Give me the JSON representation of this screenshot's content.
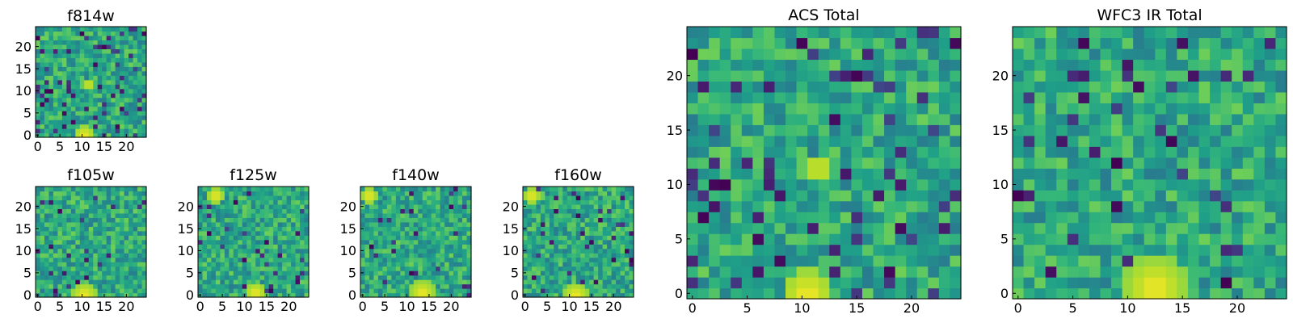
{
  "chart_data": [
    {
      "type": "heatmap",
      "title": "f814w",
      "xlim": [
        0,
        25
      ],
      "ylim": [
        0,
        25
      ],
      "xticks": [
        0,
        5,
        10,
        15,
        20
      ],
      "yticks": [
        0,
        5,
        10,
        15,
        20
      ],
      "grid_size": 25,
      "colormap": "viridis",
      "seed": 11,
      "bright_spots": [
        {
          "x": 11,
          "y": 0.5,
          "r": 2.5
        },
        {
          "x": 12,
          "y": 12,
          "r": 1.2
        }
      ],
      "dark_density": 0.09
    },
    {
      "type": "heatmap",
      "title": "f105w",
      "xlim": [
        0,
        25
      ],
      "ylim": [
        0,
        25
      ],
      "xticks": [
        0,
        5,
        10,
        15,
        20
      ],
      "yticks": [
        0,
        5,
        10,
        15,
        20
      ],
      "grid_size": 25,
      "colormap": "viridis",
      "seed": 23,
      "bright_spots": [
        {
          "x": 11,
          "y": 0.5,
          "r": 3
        }
      ],
      "dark_density": 0.03
    },
    {
      "type": "heatmap",
      "title": "f125w",
      "xlim": [
        0,
        25
      ],
      "ylim": [
        0,
        25
      ],
      "xticks": [
        0,
        5,
        10,
        15,
        20
      ],
      "yticks": [
        0,
        5,
        10,
        15,
        20
      ],
      "grid_size": 25,
      "colormap": "viridis",
      "seed": 37,
      "bright_spots": [
        {
          "x": 13,
          "y": 1,
          "r": 2.5
        },
        {
          "x": 4,
          "y": 23,
          "r": 2
        }
      ],
      "dark_density": 0.03
    },
    {
      "type": "heatmap",
      "title": "f140w",
      "xlim": [
        0,
        25
      ],
      "ylim": [
        0,
        25
      ],
      "xticks": [
        0,
        5,
        10,
        15,
        20
      ],
      "yticks": [
        0,
        5,
        10,
        15,
        20
      ],
      "grid_size": 25,
      "colormap": "viridis",
      "seed": 41,
      "bright_spots": [
        {
          "x": 14,
          "y": 1,
          "r": 3
        },
        {
          "x": 2,
          "y": 23,
          "r": 2
        }
      ],
      "dark_density": 0.03
    },
    {
      "type": "heatmap",
      "title": "f160w",
      "xlim": [
        0,
        25
      ],
      "ylim": [
        0,
        25
      ],
      "xticks": [
        0,
        5,
        10,
        15,
        20
      ],
      "yticks": [
        0,
        5,
        10,
        15,
        20
      ],
      "grid_size": 25,
      "colormap": "viridis",
      "seed": 53,
      "bright_spots": [
        {
          "x": 12,
          "y": 0.5,
          "r": 3
        },
        {
          "x": 2,
          "y": 23,
          "r": 2
        }
      ],
      "dark_density": 0.05
    },
    {
      "type": "heatmap",
      "title": "ACS Total",
      "xlim": [
        0,
        25
      ],
      "ylim": [
        0,
        25
      ],
      "xticks": [
        0,
        5,
        10,
        15,
        20
      ],
      "yticks": [
        0,
        5,
        10,
        15,
        20
      ],
      "grid_size": 25,
      "colormap": "viridis",
      "seed": 11,
      "bright_spots": [
        {
          "x": 11,
          "y": 0.5,
          "r": 2.5
        },
        {
          "x": 12,
          "y": 12,
          "r": 1.2
        }
      ],
      "dark_density": 0.09
    },
    {
      "type": "heatmap",
      "title": "WFC3 IR Total",
      "xlim": [
        0,
        25
      ],
      "ylim": [
        0,
        25
      ],
      "xticks": [
        0,
        5,
        10,
        15,
        20
      ],
      "yticks": [
        0,
        5,
        10,
        15,
        20
      ],
      "grid_size": 25,
      "colormap": "viridis",
      "seed": 67,
      "bright_spots": [
        {
          "x": 13,
          "y": 1,
          "r": 3
        }
      ],
      "dark_density": 0.05
    }
  ]
}
